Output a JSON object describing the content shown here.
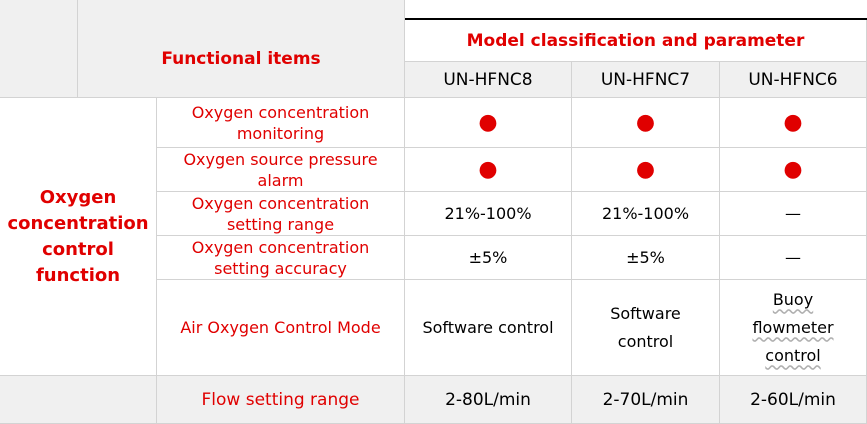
{
  "header": {
    "functional_items": "Functional items",
    "model_classification": "Model classification and parameter",
    "models": [
      "UN-HFNC8",
      "UN-HFNC7",
      "UN-HFNC6"
    ]
  },
  "group": {
    "title": "Oxygen concentration control function"
  },
  "rows": [
    {
      "item": "Oxygen concentration monitoring",
      "values": [
        "●",
        "●",
        "●"
      ]
    },
    {
      "item": "Oxygen source pressure alarm",
      "values": [
        "●",
        "●",
        "●"
      ]
    },
    {
      "item": "Oxygen concentration setting range",
      "values": [
        "21%-100%",
        "21%-100%",
        "—"
      ]
    },
    {
      "item": "Oxygen concentration setting accuracy",
      "values": [
        "±5%",
        "±5%",
        "—"
      ]
    },
    {
      "item": "Air Oxygen Control Mode",
      "values": [
        "Software control",
        "Software control",
        "Buoy flowmeter control"
      ]
    },
    {
      "item": "Flow setting range",
      "values": [
        "2-80L/min",
        "2-70L/min",
        "2-60L/min"
      ]
    }
  ],
  "colors": {
    "accent_red": "#e00000",
    "header_grey": "#f0f0f0",
    "grid": "#d3d3d3"
  }
}
